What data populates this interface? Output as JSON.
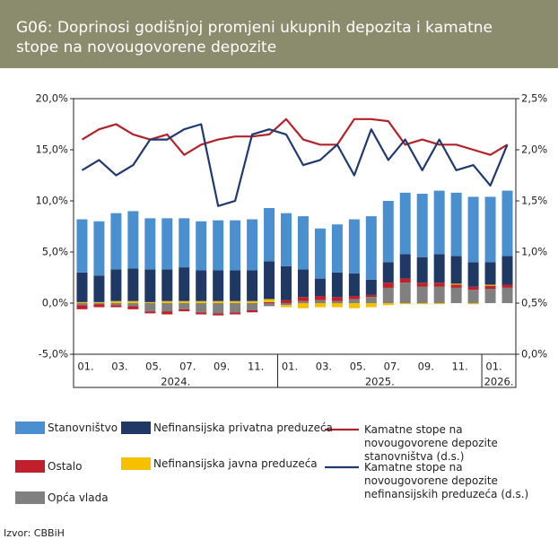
{
  "chart_data": {
    "type": "bar",
    "title": "G06: Doprinosi godišnjoj promjeni ukupnih depozita i kamatne stope na novougovorene depozite",
    "categories": [
      "01.",
      null,
      "03.",
      null,
      "05.",
      null,
      "07.",
      null,
      "09.",
      null,
      "11.",
      null,
      "01.",
      null,
      "03.",
      null,
      "05.",
      null,
      "07.",
      null,
      "09.",
      null,
      "11.",
      null,
      "01.",
      null
    ],
    "year_labels": [
      "2024.",
      "2025.",
      "2026."
    ],
    "ylim": [
      -5,
      20
    ],
    "yticks": [
      {
        "value": -5,
        "label": "-5,0%"
      },
      {
        "value": 0,
        "label": "0,0%"
      },
      {
        "value": 5,
        "label": "5,0%"
      },
      {
        "value": 10,
        "label": "10,0%"
      },
      {
        "value": 15,
        "label": "15,0%"
      },
      {
        "value": 20,
        "label": "20,0%"
      }
    ],
    "y2lim": [
      0,
      2.5
    ],
    "y2ticks": [
      {
        "value": 0,
        "label": "0,0%"
      },
      {
        "value": 0.5,
        "label": "0,5%"
      },
      {
        "value": 1,
        "label": "1,0%"
      },
      {
        "value": 1.5,
        "label": "1,5%"
      },
      {
        "value": 2,
        "label": "2,0%"
      },
      {
        "value": 2.5,
        "label": "2,5%"
      }
    ],
    "stacked": true,
    "series": [
      {
        "name": "Stanovništvo",
        "color": "#4a90d0",
        "values": [
          5.2,
          5.3,
          5.5,
          5.6,
          5.0,
          5.0,
          4.8,
          4.8,
          4.9,
          4.9,
          5.0,
          5.2,
          5.2,
          5.2,
          4.9,
          4.7,
          5.3,
          6.2,
          6.0,
          6.0,
          6.2,
          6.2,
          6.2,
          6.4,
          6.4,
          6.4
        ]
      },
      {
        "name": "Ostalo",
        "color": "#c0202a",
        "values": [
          -0.4,
          -0.3,
          -0.2,
          -0.3,
          -0.2,
          -0.3,
          -0.2,
          -0.2,
          -0.2,
          -0.2,
          -0.2,
          0.1,
          0.3,
          0.4,
          0.4,
          0.4,
          0.3,
          0.2,
          0.5,
          0.4,
          0.4,
          0.4,
          0.3,
          0.3,
          0.3,
          0.3
        ]
      },
      {
        "name": "Opća vlada",
        "color": "#808080",
        "values": [
          -0.2,
          -0.1,
          -0.2,
          -0.3,
          -0.8,
          -0.8,
          -0.6,
          -0.9,
          -1.0,
          -0.9,
          -0.7,
          -0.3,
          -0.2,
          0.2,
          0.3,
          0.2,
          0.4,
          0.6,
          1.5,
          2.0,
          1.6,
          1.6,
          1.5,
          1.3,
          1.4,
          1.5
        ]
      },
      {
        "name": "Nefinansijska privatna preduzeća",
        "color": "#1f3864",
        "values": [
          2.9,
          2.6,
          3.1,
          3.2,
          3.2,
          3.1,
          3.3,
          3.0,
          3.0,
          3.0,
          3.0,
          3.7,
          3.3,
          2.7,
          1.7,
          2.4,
          2.2,
          1.5,
          2.0,
          2.4,
          2.5,
          2.8,
          2.7,
          2.4,
          2.2,
          2.8
        ]
      },
      {
        "name": "Nefinansijska javna preduzeća",
        "color": "#f5c000",
        "values": [
          0.1,
          0.1,
          0.2,
          0.2,
          0.1,
          0.2,
          0.2,
          0.2,
          0.2,
          0.2,
          0.2,
          0.3,
          -0.2,
          -0.5,
          -0.4,
          -0.4,
          -0.5,
          -0.4,
          -0.2,
          -0.1,
          -0.1,
          -0.1,
          0.1,
          -0.1,
          0.1,
          0.0
        ]
      },
      {
        "name": "Kamatne stope na novougovorene depozite stanovništva (d.s.)",
        "color": "#b22228",
        "type": "line",
        "axis": "y2",
        "values": [
          2.1,
          2.2,
          2.25,
          2.15,
          2.1,
          2.15,
          1.95,
          2.05,
          2.1,
          2.13,
          2.13,
          2.15,
          2.3,
          2.1,
          2.05,
          2.05,
          2.3,
          2.3,
          2.28,
          2.05,
          2.1,
          2.05,
          2.05,
          2.0,
          1.95,
          2.05
        ]
      },
      {
        "name": "Kamatne stope na novougovorene depozite nefinansijskih preduzeća (d.s.)",
        "color": "#1f3a6e",
        "type": "line",
        "axis": "y2",
        "values": [
          1.8,
          1.9,
          1.75,
          1.85,
          2.1,
          2.1,
          2.2,
          2.25,
          1.45,
          1.5,
          2.15,
          2.2,
          2.15,
          1.85,
          1.9,
          2.05,
          1.75,
          2.2,
          1.9,
          2.1,
          1.8,
          2.1,
          1.8,
          1.85,
          1.65,
          2.05
        ]
      }
    ],
    "source": "Izvor: CBBiH"
  }
}
